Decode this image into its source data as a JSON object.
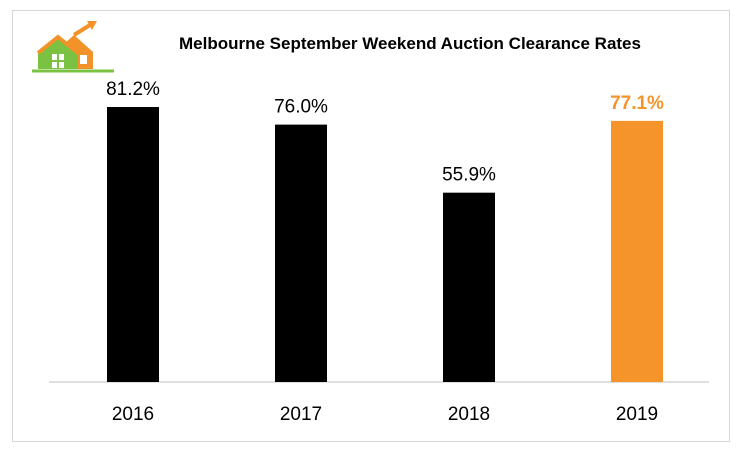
{
  "chart_data": {
    "type": "bar",
    "title": "Melbourne September Weekend Auction Clearance Rates",
    "categories": [
      "2016",
      "2017",
      "2018",
      "2019"
    ],
    "values": [
      81.2,
      76.0,
      55.9,
      77.1
    ],
    "value_labels": [
      "81.2%",
      "76.0%",
      "55.9%",
      "77.1%"
    ],
    "unit": "%",
    "ylim": [
      0,
      85
    ],
    "grid": false,
    "legend": "none",
    "colors": {
      "default": "#000000",
      "highlight": "#f5942a",
      "highlight_index": 3
    }
  },
  "logo": {
    "name": "house-logo-icon",
    "colors": [
      "#f29229",
      "#7cc242"
    ]
  }
}
